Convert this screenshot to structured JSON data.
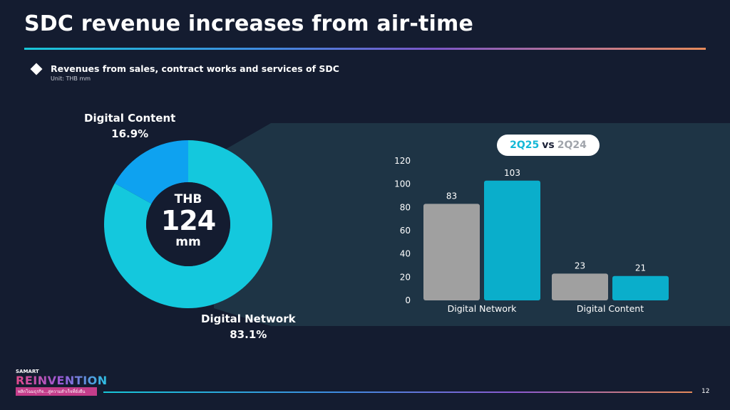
{
  "slide": {
    "title": "SDC revenue increases from air-time",
    "subtitle": "Revenues from sales, contract works and services of SDC",
    "unit": "Unit: THB mm",
    "page_number": "12"
  },
  "donut": {
    "center_line1": "THB",
    "center_line2": "124",
    "center_line3": "mm",
    "segments": [
      {
        "label": "Digital Content",
        "pct_text": "16.9%",
        "value": 16.9,
        "color": "#0ea2f0"
      },
      {
        "label": "Digital Network",
        "pct_text": "83.1%",
        "value": 83.1,
        "color": "#14c8dd"
      }
    ]
  },
  "legend_pill": {
    "current": "2Q25",
    "vs": "vs",
    "previous": "2Q24"
  },
  "logo": {
    "brand_top": "SAMART",
    "brand_main": "REINVENTION",
    "tagline": "พลิกโฉมธุรกิจ...สู่ความสำเร็จที่ยั่งยืน"
  },
  "colors": {
    "background": "#141c30",
    "panel": "#1e3445",
    "bar_previous": "#a0a0a0",
    "bar_current": "#0aaecb"
  },
  "chart_data": {
    "type": "bar",
    "categories": [
      "Digital Network",
      "Digital Content"
    ],
    "series": [
      {
        "name": "2Q24",
        "values": [
          83,
          23
        ]
      },
      {
        "name": "2Q25",
        "values": [
          103,
          21
        ]
      }
    ],
    "ylim": [
      0,
      120
    ],
    "yticks": [
      0,
      20,
      40,
      60,
      80,
      100,
      120
    ],
    "data_labels": true,
    "grid": false,
    "legend": "top"
  }
}
